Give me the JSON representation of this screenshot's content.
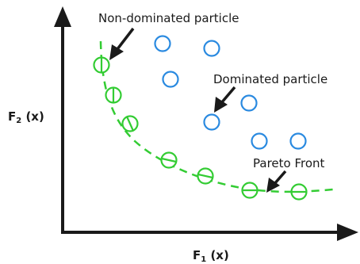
{
  "labels": {
    "non_dominated": "Non-dominated particle",
    "dominated": "Dominated particle",
    "pareto_front": "Pareto Front"
  },
  "axes": {
    "y_label": {
      "prefix": "F",
      "sub": "2",
      "suffix": " (x)"
    },
    "x_label": {
      "prefix": "F",
      "sub": "1",
      "suffix": " (x)"
    }
  },
  "colors": {
    "axis": "#1a1a1a",
    "dominated": "#2a8ae0",
    "non_dominated": "#33cc33",
    "pareto_front": "#33cc33",
    "arrow": "#1a1a1a",
    "text": "#1a1a1a"
  },
  "particles": {
    "non_dominated_count": 7,
    "dominated_count": 7
  }
}
